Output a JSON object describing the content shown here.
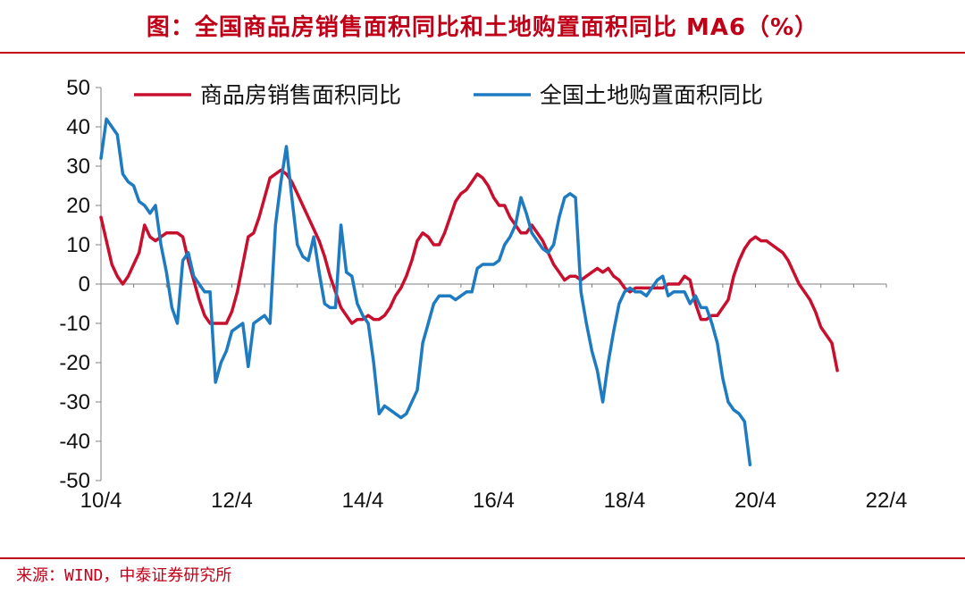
{
  "title": "图：全国商品房销售面积同比和土地购置面积同比 MA6（%）",
  "source": "来源：WIND，中泰证券研究所",
  "colors": {
    "title": "#c00018",
    "series_sales": "#c8102e",
    "series_land": "#1f7bc1",
    "axis": "#808080"
  },
  "chart_data": {
    "type": "line",
    "xlabel": "",
    "ylabel": "",
    "x_tick_labels": [
      "10/4",
      "12/4",
      "14/4",
      "16/4",
      "18/4",
      "20/4",
      "22/4"
    ],
    "x_tick_positions": [
      0,
      24,
      48,
      72,
      96,
      120,
      144
    ],
    "y_ticks": [
      50,
      40,
      30,
      20,
      10,
      0,
      -10,
      -20,
      -30,
      -40,
      -50
    ],
    "ylim": [
      -50,
      50
    ],
    "xlim": [
      0,
      144
    ],
    "legend_position": "top",
    "grid": false,
    "series": [
      {
        "name": "商品房销售面积同比",
        "color": "#c8102e",
        "points": [
          [
            0,
            17
          ],
          [
            1,
            11
          ],
          [
            2,
            5
          ],
          [
            3,
            2
          ],
          [
            4,
            0
          ],
          [
            5,
            2
          ],
          [
            6,
            5
          ],
          [
            7,
            8
          ],
          [
            8,
            15
          ],
          [
            9,
            12
          ],
          [
            10,
            11
          ],
          [
            11,
            12
          ],
          [
            12,
            13
          ],
          [
            13,
            13
          ],
          [
            14,
            13
          ],
          [
            15,
            12
          ],
          [
            16,
            6
          ],
          [
            17,
            1
          ],
          [
            18,
            -4
          ],
          [
            19,
            -8
          ],
          [
            20,
            -10
          ],
          [
            21,
            -10
          ],
          [
            22,
            -10
          ],
          [
            23,
            -10
          ],
          [
            24,
            -7
          ],
          [
            25,
            -2
          ],
          [
            26,
            5
          ],
          [
            27,
            12
          ],
          [
            28,
            13
          ],
          [
            29,
            17
          ],
          [
            30,
            22
          ],
          [
            31,
            27
          ],
          [
            32,
            28
          ],
          [
            33,
            29
          ],
          [
            34,
            28
          ],
          [
            35,
            26
          ],
          [
            36,
            23
          ],
          [
            37,
            20
          ],
          [
            38,
            17
          ],
          [
            39,
            14
          ],
          [
            40,
            11
          ],
          [
            41,
            7
          ],
          [
            42,
            2
          ],
          [
            43,
            -2
          ],
          [
            44,
            -6
          ],
          [
            45,
            -8
          ],
          [
            46,
            -10
          ],
          [
            47,
            -9
          ],
          [
            48,
            -9
          ],
          [
            49,
            -8
          ],
          [
            50,
            -9
          ],
          [
            51,
            -9
          ],
          [
            52,
            -8
          ],
          [
            53,
            -6
          ],
          [
            54,
            -3
          ],
          [
            55,
            -1
          ],
          [
            56,
            2
          ],
          [
            57,
            6
          ],
          [
            58,
            11
          ],
          [
            59,
            13
          ],
          [
            60,
            12
          ],
          [
            61,
            10
          ],
          [
            62,
            10
          ],
          [
            63,
            13
          ],
          [
            64,
            17
          ],
          [
            65,
            21
          ],
          [
            66,
            23
          ],
          [
            67,
            24
          ],
          [
            68,
            26
          ],
          [
            69,
            28
          ],
          [
            70,
            27
          ],
          [
            71,
            25
          ],
          [
            72,
            22
          ],
          [
            73,
            20
          ],
          [
            74,
            20
          ],
          [
            75,
            17
          ],
          [
            76,
            15
          ],
          [
            77,
            13
          ],
          [
            78,
            13
          ],
          [
            79,
            15
          ],
          [
            80,
            13
          ],
          [
            81,
            11
          ],
          [
            82,
            8
          ],
          [
            83,
            5
          ],
          [
            84,
            3
          ],
          [
            85,
            1
          ],
          [
            86,
            2
          ],
          [
            87,
            2
          ],
          [
            88,
            1
          ],
          [
            89,
            2
          ],
          [
            90,
            3
          ],
          [
            91,
            4
          ],
          [
            92,
            3
          ],
          [
            93,
            4
          ],
          [
            94,
            2
          ],
          [
            95,
            1
          ],
          [
            96,
            -1
          ],
          [
            97,
            -2
          ],
          [
            98,
            -1
          ],
          [
            99,
            -1
          ],
          [
            100,
            -1
          ],
          [
            101,
            -1
          ],
          [
            102,
            -1
          ],
          [
            103,
            -1
          ],
          [
            104,
            0
          ],
          [
            105,
            0
          ],
          [
            106,
            0
          ],
          [
            107,
            2
          ],
          [
            108,
            1
          ],
          [
            109,
            -5
          ],
          [
            110,
            -9
          ],
          [
            111,
            -9
          ],
          [
            112,
            -8
          ],
          [
            113,
            -8
          ],
          [
            114,
            -6
          ],
          [
            115,
            -4
          ],
          [
            116,
            2
          ],
          [
            117,
            6
          ],
          [
            118,
            9
          ],
          [
            119,
            11
          ],
          [
            120,
            12
          ],
          [
            121,
            11
          ],
          [
            122,
            11
          ],
          [
            123,
            10
          ],
          [
            124,
            9
          ],
          [
            125,
            8
          ],
          [
            126,
            6
          ],
          [
            127,
            3
          ],
          [
            128,
            0
          ],
          [
            129,
            -2
          ],
          [
            130,
            -4
          ],
          [
            131,
            -7
          ],
          [
            132,
            -11
          ],
          [
            133,
            -13
          ],
          [
            134,
            -15
          ],
          [
            135,
            -22
          ]
        ]
      },
      {
        "name": "全国土地购置面积同比",
        "color": "#1f7bc1",
        "points": [
          [
            0,
            32
          ],
          [
            1,
            42
          ],
          [
            2,
            40
          ],
          [
            3,
            38
          ],
          [
            4,
            28
          ],
          [
            5,
            26
          ],
          [
            6,
            25
          ],
          [
            7,
            21
          ],
          [
            8,
            20
          ],
          [
            9,
            18
          ],
          [
            10,
            20
          ],
          [
            11,
            10
          ],
          [
            12,
            3
          ],
          [
            13,
            -6
          ],
          [
            14,
            -10
          ],
          [
            15,
            6
          ],
          [
            16,
            8
          ],
          [
            17,
            2
          ],
          [
            18,
            0
          ],
          [
            19,
            -2
          ],
          [
            20,
            -2
          ],
          [
            21,
            -25
          ],
          [
            22,
            -20
          ],
          [
            23,
            -17
          ],
          [
            24,
            -12
          ],
          [
            25,
            -11
          ],
          [
            26,
            -10
          ],
          [
            27,
            -21
          ],
          [
            28,
            -10
          ],
          [
            29,
            -9
          ],
          [
            30,
            -8
          ],
          [
            31,
            -10
          ],
          [
            32,
            15
          ],
          [
            33,
            26
          ],
          [
            34,
            35
          ],
          [
            35,
            22
          ],
          [
            36,
            10
          ],
          [
            37,
            7
          ],
          [
            38,
            6
          ],
          [
            39,
            12
          ],
          [
            40,
            3
          ],
          [
            41,
            -5
          ],
          [
            42,
            -6
          ],
          [
            43,
            -6
          ],
          [
            44,
            15
          ],
          [
            45,
            3
          ],
          [
            46,
            2
          ],
          [
            47,
            -5
          ],
          [
            48,
            -8
          ],
          [
            49,
            -10
          ],
          [
            50,
            -20
          ],
          [
            51,
            -33
          ],
          [
            52,
            -31
          ],
          [
            53,
            -32
          ],
          [
            54,
            -33
          ],
          [
            55,
            -34
          ],
          [
            56,
            -33
          ],
          [
            57,
            -30
          ],
          [
            58,
            -27
          ],
          [
            59,
            -15
          ],
          [
            60,
            -10
          ],
          [
            61,
            -5
          ],
          [
            62,
            -3
          ],
          [
            63,
            -3
          ],
          [
            64,
            -3
          ],
          [
            65,
            -4
          ],
          [
            66,
            -3
          ],
          [
            67,
            -2
          ],
          [
            68,
            -2
          ],
          [
            69,
            4
          ],
          [
            70,
            5
          ],
          [
            71,
            5
          ],
          [
            72,
            5
          ],
          [
            73,
            6
          ],
          [
            74,
            10
          ],
          [
            75,
            12
          ],
          [
            76,
            15
          ],
          [
            77,
            22
          ],
          [
            78,
            18
          ],
          [
            79,
            13
          ],
          [
            80,
            11
          ],
          [
            81,
            9
          ],
          [
            82,
            8
          ],
          [
            83,
            10
          ],
          [
            84,
            17
          ],
          [
            85,
            22
          ],
          [
            86,
            23
          ],
          [
            87,
            22
          ],
          [
            88,
            -2
          ],
          [
            89,
            -10
          ],
          [
            90,
            -17
          ],
          [
            91,
            -22
          ],
          [
            92,
            -30
          ],
          [
            93,
            -20
          ],
          [
            94,
            -12
          ],
          [
            95,
            -5
          ],
          [
            96,
            -2
          ],
          [
            97,
            -1
          ],
          [
            98,
            -2
          ],
          [
            99,
            -2
          ],
          [
            100,
            -3
          ],
          [
            101,
            -1
          ],
          [
            102,
            1
          ],
          [
            103,
            2
          ],
          [
            104,
            -3
          ],
          [
            105,
            -2
          ],
          [
            106,
            -2
          ],
          [
            107,
            -2
          ],
          [
            108,
            -5
          ],
          [
            109,
            -3
          ],
          [
            110,
            -6
          ],
          [
            111,
            -6
          ],
          [
            112,
            -10
          ],
          [
            113,
            -15
          ],
          [
            114,
            -24
          ],
          [
            115,
            -30
          ],
          [
            116,
            -32
          ],
          [
            117,
            -33
          ],
          [
            118,
            -35
          ],
          [
            119,
            -46
          ]
        ]
      }
    ]
  }
}
